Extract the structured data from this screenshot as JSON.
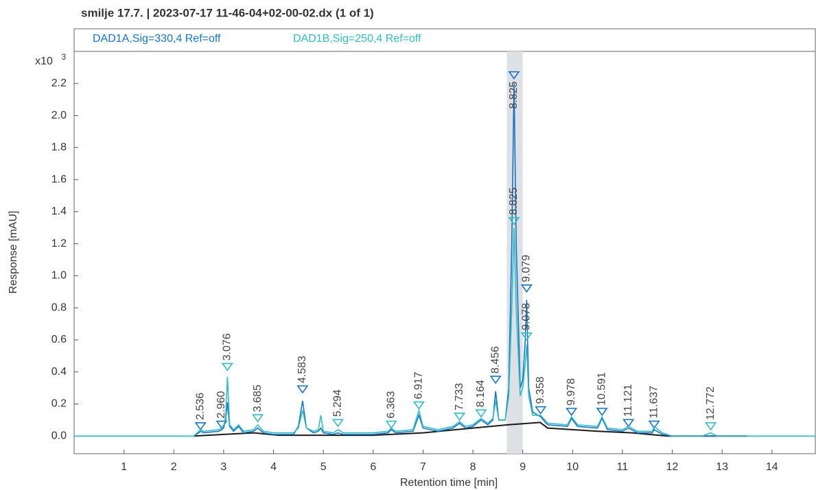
{
  "chart_data": {
    "type": "line",
    "title": "smilje 17.7. | 2023-07-17 11-46-04+02-00-02.dx (1 of 1)",
    "x_label": "Retention time [min]",
    "y_label": "Response [mAU]",
    "y_multiplier": "x10",
    "y_multiplier_exp": "3",
    "xlim": [
      0,
      14.87
    ],
    "ylim": [
      -0.11,
      2.4
    ],
    "xticks": [
      1,
      2,
      3,
      4,
      5,
      6,
      7,
      8,
      9,
      10,
      11,
      12,
      13,
      14
    ],
    "yticks": [
      {
        "value": 0,
        "label": "0.0"
      },
      0.2,
      0.4,
      0.6,
      0.8,
      {
        "value": 1,
        "label": "1.0"
      },
      1.2,
      1.4,
      1.6,
      1.8,
      {
        "value": 2,
        "label": "2.0"
      },
      2.2
    ],
    "highlight": [
      8.68,
      9.0
    ],
    "x": [
      0,
      2.4,
      2.5,
      2.54,
      2.6,
      2.9,
      2.96,
      3.0,
      3.04,
      3.076,
      3.12,
      3.2,
      3.3,
      3.4,
      3.6,
      3.685,
      3.8,
      4.0,
      4.4,
      4.5,
      4.583,
      4.66,
      4.8,
      4.9,
      4.95,
      5.0,
      5.2,
      5.294,
      5.4,
      6.0,
      6.3,
      6.363,
      6.45,
      6.8,
      6.917,
      7.0,
      7.3,
      7.6,
      7.733,
      7.85,
      8.0,
      8.164,
      8.3,
      8.4,
      8.456,
      8.52,
      8.65,
      8.72,
      8.78,
      8.825,
      8.87,
      8.95,
      9.0,
      9.05,
      9.079,
      9.12,
      9.2,
      9.358,
      9.5,
      9.9,
      9.978,
      10.1,
      10.5,
      10.591,
      10.7,
      11.0,
      11.121,
      11.3,
      11.6,
      11.637,
      11.8,
      12.0,
      12.6,
      12.772,
      12.9,
      13.5,
      14.87
    ],
    "series": [
      {
        "name": "DAD1A,Sig=330,4  Ref=off",
        "color": "#1574c4",
        "values": [
          0,
          0,
          0.02,
          0.03,
          0.02,
          0.03,
          0.04,
          0.05,
          0.1,
          0.21,
          0.06,
          0.03,
          0.06,
          0.02,
          0.03,
          0.05,
          0.02,
          0.01,
          0.01,
          0.06,
          0.22,
          0.05,
          0.02,
          0.03,
          0.05,
          0.02,
          0.01,
          0.02,
          0.01,
          0.01,
          0.02,
          0.04,
          0.02,
          0.03,
          0.13,
          0.05,
          0.03,
          0.05,
          0.08,
          0.05,
          0.06,
          0.1,
          0.07,
          0.1,
          0.28,
          0.1,
          0.1,
          0.3,
          1.2,
          2.2,
          1.2,
          0.3,
          0.35,
          0.6,
          0.85,
          0.3,
          0.15,
          0.12,
          0.07,
          0.06,
          0.11,
          0.06,
          0.05,
          0.11,
          0.04,
          0.03,
          0.05,
          0.02,
          0.02,
          0.04,
          0.01,
          0,
          0,
          0,
          0,
          0,
          0
        ],
        "peaks": {
          "x": [
            2.536,
            2.96,
            4.583,
            8.456,
            8.825,
            9.079,
            9.358,
            9.978,
            10.591,
            11.121,
            11.637
          ],
          "y": [
            0.04,
            0.05,
            0.27,
            0.33,
            2.23,
            0.9,
            0.14,
            0.13,
            0.13,
            0.06,
            0.05
          ],
          "labels": [
            "2.536",
            "2.960",
            "4.583",
            "8.456",
            "8.825",
            "9.079",
            "9.358",
            "9.978",
            "10.591",
            "11.121",
            "11.637"
          ]
        }
      },
      {
        "name": "DAD1B,Sig=250,4  Ref=off",
        "color": "#2fbcc4",
        "values": [
          0,
          0,
          0.03,
          0.04,
          0.03,
          0.04,
          0.05,
          0.06,
          0.12,
          0.37,
          0.07,
          0.04,
          0.07,
          0.03,
          0.04,
          0.07,
          0.03,
          0.02,
          0.02,
          0.05,
          0.16,
          0.05,
          0.03,
          0.04,
          0.13,
          0.03,
          0.02,
          0.04,
          0.02,
          0.02,
          0.03,
          0.05,
          0.03,
          0.04,
          0.16,
          0.06,
          0.04,
          0.06,
          0.09,
          0.06,
          0.07,
          0.11,
          0.08,
          0.11,
          0.22,
          0.1,
          0.1,
          0.25,
          0.8,
          1.3,
          0.8,
          0.25,
          0.3,
          0.45,
          0.57,
          0.25,
          0.13,
          0.13,
          0.08,
          0.07,
          0.12,
          0.07,
          0.06,
          0.12,
          0.05,
          0.04,
          0.06,
          0.03,
          0.03,
          0.06,
          0.02,
          0,
          0,
          0.02,
          0,
          0,
          0
        ],
        "peaks": {
          "x": [
            3.076,
            3.685,
            5.294,
            6.363,
            6.917,
            7.733,
            8.164,
            8.825,
            9.078,
            12.772
          ],
          "y": [
            0.41,
            0.09,
            0.06,
            0.05,
            0.17,
            0.1,
            0.12,
            1.32,
            0.6,
            0.04
          ],
          "labels": [
            "3.076",
            "3.685",
            "5.294",
            "6.363",
            "6.917",
            "7.733",
            "8.164",
            "8.825",
            "9.078",
            "12.772"
          ]
        }
      }
    ],
    "baseline": {
      "color": "#1a1a1a",
      "x": [
        2.4,
        3.0,
        3.6,
        4.1,
        5.0,
        6.0,
        7.0,
        8.0,
        8.7,
        9.35,
        9.5,
        10.5,
        11.2,
        11.9,
        12.6,
        13.5
      ],
      "y": [
        0,
        0.01,
        0.02,
        0.005,
        0.005,
        0.005,
        0.02,
        0.05,
        0.07,
        0.085,
        0.05,
        0.03,
        0.02,
        0,
        0,
        0
      ]
    }
  }
}
